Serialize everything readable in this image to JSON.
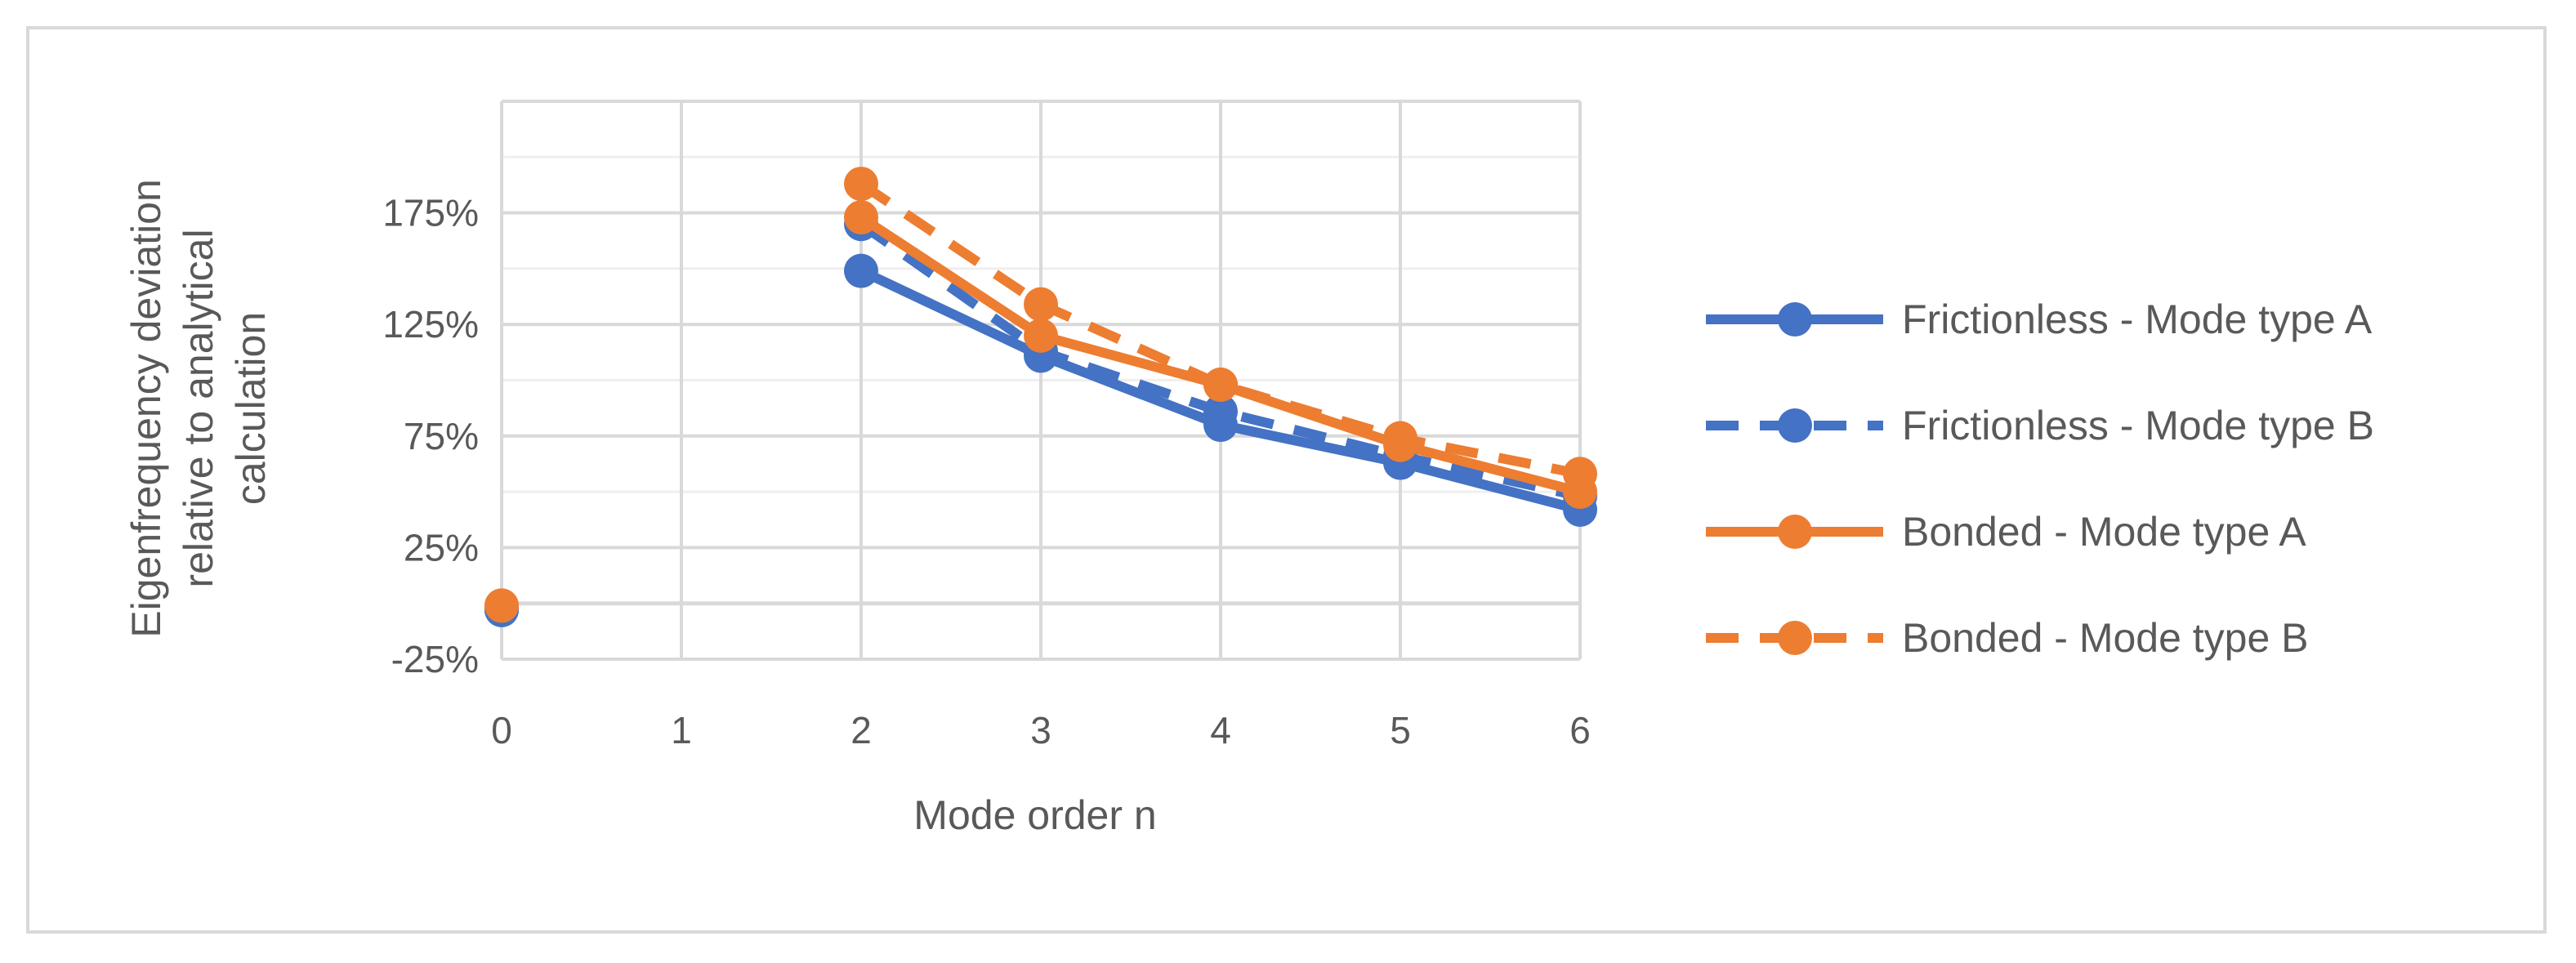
{
  "chart_data": {
    "type": "line",
    "title": "",
    "xlabel": "Mode order n",
    "ylabel_lines": [
      "Eigenfrequency deviation",
      "relative to analytical",
      "calculation"
    ],
    "x_ticks": [
      0,
      1,
      2,
      3,
      4,
      5,
      6
    ],
    "y_ticks": [
      "-25%",
      "25%",
      "75%",
      "125%",
      "175%"
    ],
    "y_tick_values": [
      -25,
      25,
      75,
      125,
      175
    ],
    "xlim": [
      0,
      6
    ],
    "ylim": [
      -25,
      225
    ],
    "grid": true,
    "legend_position": "right",
    "series": [
      {
        "name": "Frictionless - Mode type A",
        "color": "#4472c4",
        "dash": "solid",
        "points": [
          [
            0,
            -3
          ],
          [
            2,
            149
          ],
          [
            3,
            111
          ],
          [
            4,
            80
          ],
          [
            5,
            63
          ],
          [
            6,
            42
          ]
        ]
      },
      {
        "name": "Frictionless - Mode type B",
        "color": "#4472c4",
        "dash": "dashed",
        "points": [
          [
            0,
            -3
          ],
          [
            2,
            170
          ],
          [
            3,
            113
          ],
          [
            4,
            86
          ],
          [
            5,
            66
          ],
          [
            6,
            48
          ]
        ]
      },
      {
        "name": "Bonded - Mode type A",
        "color": "#ed7d31",
        "dash": "solid",
        "points": [
          [
            0,
            -1
          ],
          [
            2,
            173
          ],
          [
            3,
            120
          ],
          [
            4,
            98
          ],
          [
            5,
            71
          ],
          [
            6,
            50
          ]
        ]
      },
      {
        "name": "Bonded - Mode type B",
        "color": "#ed7d31",
        "dash": "dashed",
        "points": [
          [
            0,
            -1
          ],
          [
            2,
            188
          ],
          [
            3,
            134
          ],
          [
            4,
            98
          ],
          [
            5,
            74
          ],
          [
            6,
            58
          ]
        ]
      }
    ]
  }
}
